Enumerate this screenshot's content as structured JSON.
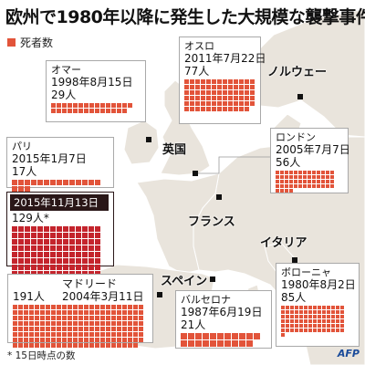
{
  "title": "欧州で1980年以降に発生した大規模な襲撃事件",
  "legend": {
    "label": "死者数",
    "color": "#e2543a"
  },
  "colors": {
    "block": "#e2543a",
    "block_dark": "#c4242c",
    "land": "#e9e4dc",
    "land_edge": "#ffffff",
    "sea": "#ffffff"
  },
  "countries": {
    "norway": "ノルウェー",
    "uk": "英国",
    "france": "フランス",
    "italy": "イタリア",
    "spain": "スペイン"
  },
  "attacks": {
    "omagh": {
      "city": "オマー",
      "date": "1998年8月15日",
      "deaths": "29人",
      "count": 29
    },
    "oslo": {
      "city": "オスロ",
      "date": "2011年7月22日",
      "deaths": "77人",
      "count": 77
    },
    "paris1": {
      "city": "パリ",
      "date": "2015年1月7日",
      "deaths": "17人",
      "count": 17
    },
    "paris2": {
      "date": "2015年11月13日",
      "deaths": "129人*",
      "count": 129
    },
    "london": {
      "city": "ロンドン",
      "date": "2005年7月7日",
      "deaths": "56人",
      "count": 56
    },
    "madrid": {
      "city": "マドリード",
      "date": "2004年3月11日",
      "deaths": "191人",
      "count": 191
    },
    "barcelona": {
      "city": "バルセロナ",
      "date": "1987年6月19日",
      "deaths": "21人",
      "count": 21
    },
    "bologna": {
      "city": "ボローニャ",
      "date": "1980年8月2日",
      "deaths": "85人",
      "count": 85
    }
  },
  "footnote": "* 15日時点の数",
  "credit": "AFP"
}
